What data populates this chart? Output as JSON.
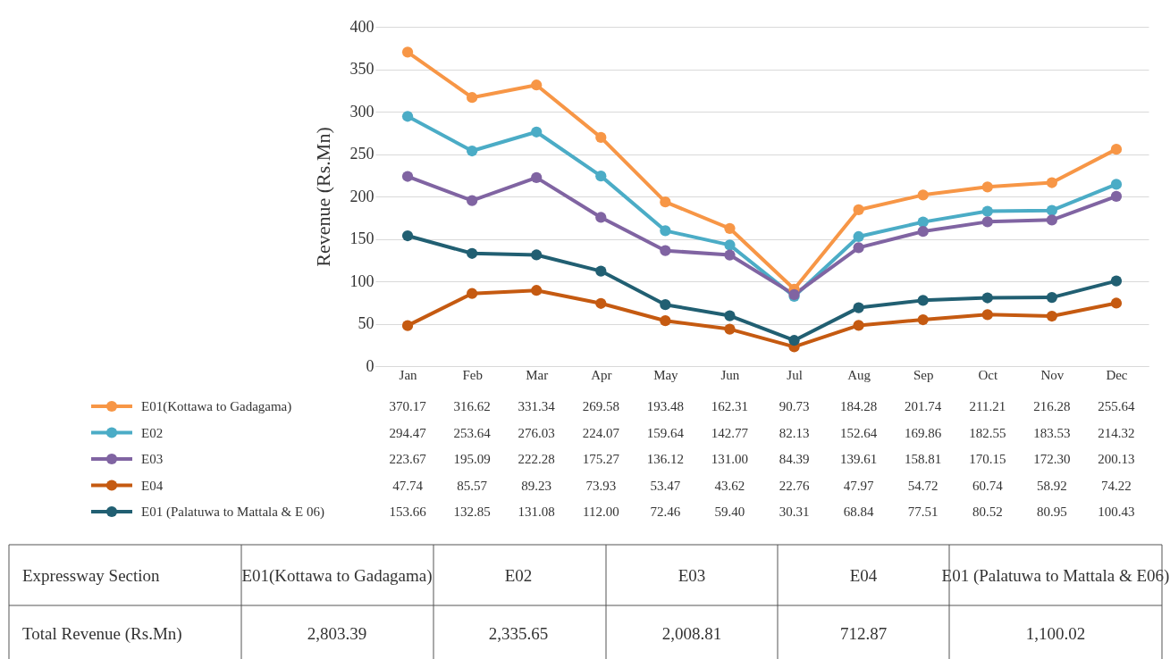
{
  "chart_data": {
    "type": "line",
    "ylabel": "Revenue (Rs.Mn)",
    "categories": [
      "Jan",
      "Feb",
      "Mar",
      "Apr",
      "May",
      "Jun",
      "Jul",
      "Aug",
      "Sep",
      "Oct",
      "Nov",
      "Dec"
    ],
    "series": [
      {
        "name": "E01(Kottawa to Gadagama)",
        "color": "#f79646",
        "values": [
          370.17,
          316.62,
          331.34,
          269.58,
          193.48,
          162.31,
          90.73,
          184.28,
          201.74,
          211.21,
          216.28,
          255.64
        ],
        "value_labels": [
          "370.17",
          "316.62",
          "331.34",
          "269.58",
          "193.48",
          "162.31",
          "90.73",
          "184.28",
          "201.74",
          "211.21",
          "216.28",
          "255.64"
        ]
      },
      {
        "name": "E02",
        "color": "#4bacc6",
        "values": [
          294.47,
          253.64,
          276.03,
          224.07,
          159.64,
          142.77,
          82.13,
          152.64,
          169.86,
          182.55,
          183.53,
          214.32
        ],
        "value_labels": [
          "294.47",
          "253.64",
          "276.03",
          "224.07",
          "159.64",
          "142.77",
          "82.13",
          "152.64",
          "169.86",
          "182.55",
          "183.53",
          "214.32"
        ]
      },
      {
        "name": "E03",
        "color": "#8064a2",
        "values": [
          223.67,
          195.09,
          222.28,
          175.27,
          136.12,
          131.0,
          84.39,
          139.61,
          158.81,
          170.15,
          172.3,
          200.13
        ],
        "value_labels": [
          "223.67",
          "195.09",
          "222.28",
          "175.27",
          "136.12",
          "131.00",
          "84.39",
          "139.61",
          "158.81",
          "170.15",
          "172.30",
          "200.13"
        ]
      },
      {
        "name": "E04",
        "color": "#c55a11",
        "values": [
          47.74,
          85.57,
          89.23,
          73.93,
          53.47,
          43.62,
          22.76,
          47.97,
          54.72,
          60.74,
          58.92,
          74.22
        ],
        "value_labels": [
          "47.74",
          "85.57",
          "89.23",
          "73.93",
          "53.47",
          "43.62",
          "22.76",
          "47.97",
          "54.72",
          "60.74",
          "58.92",
          "74.22"
        ]
      },
      {
        "name": "E01 (Palatuwa to Mattala & E 06)",
        "color": "#215f72",
        "values": [
          153.66,
          132.85,
          131.08,
          112.0,
          72.46,
          59.4,
          30.31,
          68.84,
          77.51,
          80.52,
          80.95,
          100.43
        ],
        "value_labels": [
          "153.66",
          "132.85",
          "131.08",
          "112.00",
          "72.46",
          "59.40",
          "30.31",
          "68.84",
          "77.51",
          "80.52",
          "80.95",
          "100.43"
        ]
      }
    ],
    "ylim": [
      0,
      400
    ],
    "yticks": [
      0,
      50,
      100,
      150,
      200,
      250,
      300,
      350,
      400
    ],
    "grid": "y",
    "marker": "circle",
    "legend": "bottom left",
    "line_style": "solid",
    "annotations": [
      "Expressway Section",
      "E01(Kottawa to Gadagama)",
      "E02",
      "E03",
      "E04",
      "E01 (Palatuwa to Mattala & E06)",
      "Total Revenue (Rs.Mn)",
      "2,803.39",
      "2,335.65",
      "2,008.81",
      "712.87",
      "1,100.02"
    ]
  }
}
